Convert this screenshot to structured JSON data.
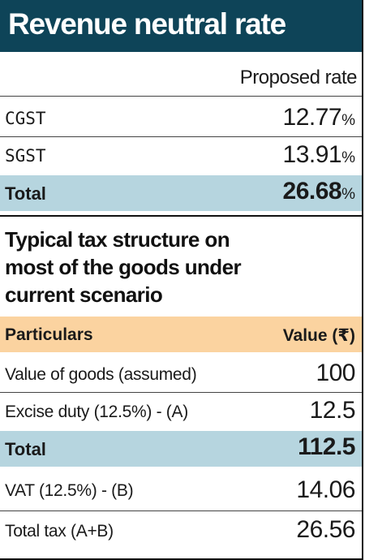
{
  "title": "Revenue neutral rate",
  "proposed": {
    "column_header": "Proposed rate",
    "rows": [
      {
        "label": "CGST",
        "value": "12.77",
        "unit": "%"
      },
      {
        "label": "SGST",
        "value": "13.91",
        "unit": "%"
      }
    ],
    "total": {
      "label": "Total",
      "value": "26.68",
      "unit": "%"
    }
  },
  "typical": {
    "heading_lines": [
      "Typical tax structure on",
      "most of the goods under",
      "current scenario"
    ],
    "col_particulars": "Particulars",
    "col_value": "Value (₹)",
    "rows": [
      {
        "label": "Value of goods (assumed)",
        "value": "100"
      },
      {
        "label": "Excise duty (12.5%) - (A)",
        "value": "12.5"
      }
    ],
    "total": {
      "label": "Total",
      "value": "112.5"
    },
    "rows_after": [
      {
        "label": "VAT (12.5%) - (B)",
        "value": "14.06"
      },
      {
        "label": "Total tax (A+B)",
        "value": "26.56"
      }
    ]
  }
}
